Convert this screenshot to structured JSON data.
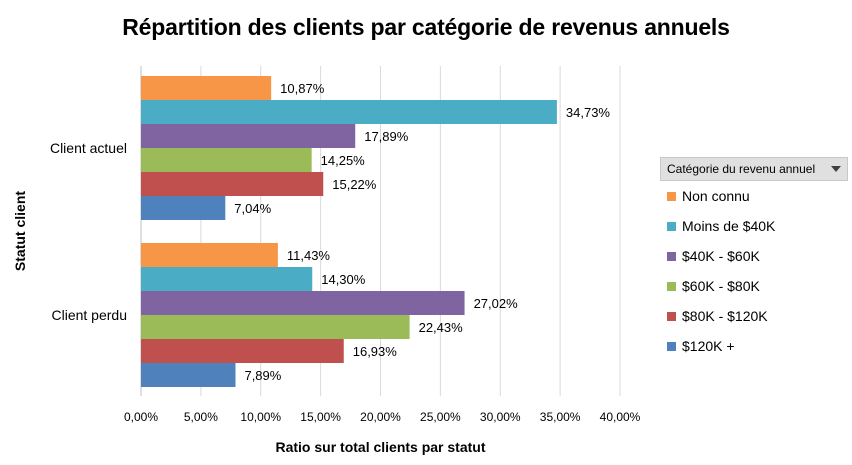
{
  "legend": {
    "header": "Catégorie du revenu annuel",
    "dropdown_icon": "chevron-down-icon"
  },
  "chart_data": {
    "type": "bar",
    "orientation": "horizontal",
    "title": "Répartition des clients par catégorie de revenus annuels",
    "xlabel": "Ratio sur total clients par statut",
    "ylabel": "Statut client",
    "xlim": [
      0,
      40
    ],
    "x_ticks": [
      "0,00%",
      "5,00%",
      "10,00%",
      "15,00%",
      "20,00%",
      "25,00%",
      "30,00%",
      "35,00%",
      "40,00%"
    ],
    "grid": true,
    "legend_position": "right",
    "categories": [
      "Client actuel",
      "Client perdu"
    ],
    "series": [
      {
        "name": "Non connu",
        "color": "#f79646",
        "values": [
          10.87,
          11.43
        ],
        "labels": [
          "10,87%",
          "11,43%"
        ]
      },
      {
        "name": "Moins de $40K",
        "color": "#4bacc6",
        "values": [
          34.73,
          14.3
        ],
        "labels": [
          "34,73%",
          "14,30%"
        ]
      },
      {
        "name": "$40K - $60K",
        "color": "#8064a2",
        "values": [
          17.89,
          27.02
        ],
        "labels": [
          "17,89%",
          "27,02%"
        ]
      },
      {
        "name": "$60K - $80K",
        "color": "#9bbb59",
        "values": [
          14.25,
          22.43
        ],
        "labels": [
          "14,25%",
          "22,43%"
        ]
      },
      {
        "name": "$80K - $120K",
        "color": "#c0504d",
        "values": [
          15.22,
          16.93
        ],
        "labels": [
          "15,22%",
          "16,93%"
        ]
      },
      {
        "name": "$120K +",
        "color": "#4f81bd",
        "values": [
          7.04,
          7.89
        ],
        "labels": [
          "7,04%",
          "7,89%"
        ]
      }
    ]
  }
}
